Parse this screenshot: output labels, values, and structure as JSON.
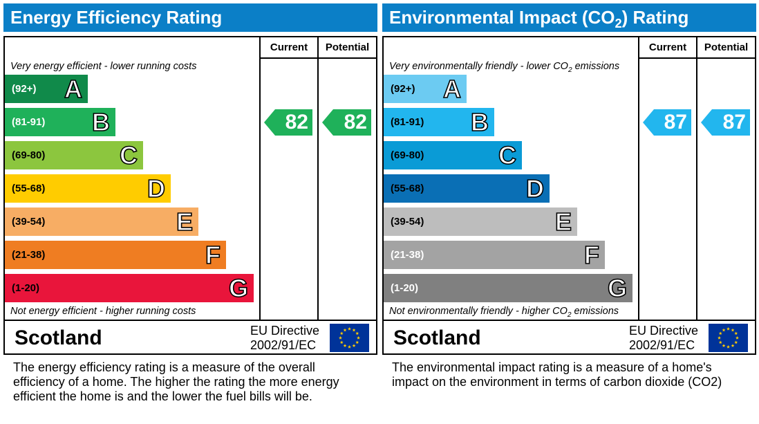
{
  "chart_data": [
    {
      "type": "bar",
      "title": "Energy Efficiency Rating",
      "columns": [
        "Current",
        "Potential"
      ],
      "top_caption": "Very energy efficient - lower running costs",
      "bottom_caption": "Not energy efficient - higher running costs",
      "bands": [
        {
          "letter": "A",
          "range": "(92+)",
          "color": "#108a4a",
          "range_color": "#ffffff"
        },
        {
          "letter": "B",
          "range": "(81-91)",
          "color": "#1fb15a",
          "range_color": "#ffffff"
        },
        {
          "letter": "C",
          "range": "(69-80)",
          "color": "#8cc63e",
          "range_color": "#000000"
        },
        {
          "letter": "D",
          "range": "(55-68)",
          "color": "#ffcc00",
          "range_color": "#000000"
        },
        {
          "letter": "E",
          "range": "(39-54)",
          "color": "#f7ad64",
          "range_color": "#000000"
        },
        {
          "letter": "F",
          "range": "(21-38)",
          "color": "#ef7d22",
          "range_color": "#000000"
        },
        {
          "letter": "G",
          "range": "(1-20)",
          "color": "#e9153b",
          "range_color": "#000000"
        }
      ],
      "current": 82,
      "potential": 82,
      "rating_color": "#1fb15a",
      "country": "Scotland",
      "directive": [
        "EU Directive",
        "2002/91/EC"
      ],
      "description": [
        "The energy efficiency rating is a measure of the overall",
        "efficiency of a home.  The higher the rating the more energy",
        "efficient the home is and the lower the fuel bills will be."
      ],
      "header_color": "#0b7fc7"
    },
    {
      "type": "bar",
      "title": "Environmental Impact (CO₂) Rating",
      "columns": [
        "Current",
        "Potential"
      ],
      "top_caption": "Very environmentally friendly - lower CO₂ emissions",
      "bottom_caption": "Not environmentally friendly - higher CO₂ emissions",
      "bands": [
        {
          "letter": "A",
          "range": "(92+)",
          "color": "#6ccbf2",
          "range_color": "#000000"
        },
        {
          "letter": "B",
          "range": "(81-91)",
          "color": "#22b6ee",
          "range_color": "#000000"
        },
        {
          "letter": "C",
          "range": "(69-80)",
          "color": "#0a9bd6",
          "range_color": "#000000"
        },
        {
          "letter": "D",
          "range": "(55-68)",
          "color": "#0a6fb5",
          "range_color": "#000000"
        },
        {
          "letter": "E",
          "range": "(39-54)",
          "color": "#bdbdbd",
          "range_color": "#000000"
        },
        {
          "letter": "F",
          "range": "(21-38)",
          "color": "#a3a3a3",
          "range_color": "#ffffff"
        },
        {
          "letter": "G",
          "range": "(1-20)",
          "color": "#808080",
          "range_color": "#ffffff"
        }
      ],
      "current": 87,
      "potential": 87,
      "rating_color": "#22b6ee",
      "country": "Scotland",
      "directive": [
        "EU Directive",
        "2002/91/EC"
      ],
      "description": [
        "The environmental impact rating is a measure of a home's",
        "impact on the environment in terms of carbon dioxide (CO2)"
      ],
      "header_color": "#0b7fc7"
    }
  ]
}
